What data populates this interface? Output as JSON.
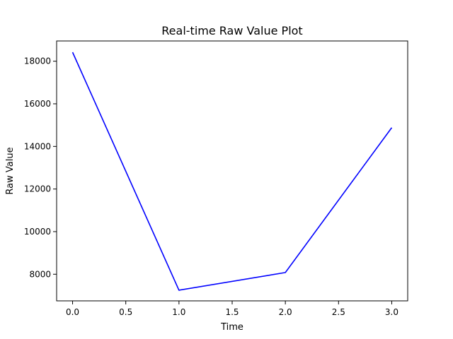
{
  "chart_data": {
    "type": "line",
    "title": "Real-time Raw Value Plot",
    "xlabel": "Time",
    "ylabel": "Raw Value",
    "xlim": [
      -0.15,
      3.15
    ],
    "ylim": [
      6750,
      18950
    ],
    "x_ticks": [
      0.0,
      0.5,
      1.0,
      1.5,
      2.0,
      2.5,
      3.0
    ],
    "x_tick_labels": [
      "0.0",
      "0.5",
      "1.0",
      "1.5",
      "2.0",
      "2.5",
      "3.0"
    ],
    "y_ticks": [
      8000,
      10000,
      12000,
      14000,
      16000,
      18000
    ],
    "y_tick_labels": [
      "8000",
      "10000",
      "12000",
      "14000",
      "16000",
      "18000"
    ],
    "grid": false,
    "series": [
      {
        "color": "#0000ff",
        "x": [
          0,
          1,
          2,
          3
        ],
        "y": [
          18420,
          7250,
          8080,
          14880
        ]
      }
    ]
  }
}
